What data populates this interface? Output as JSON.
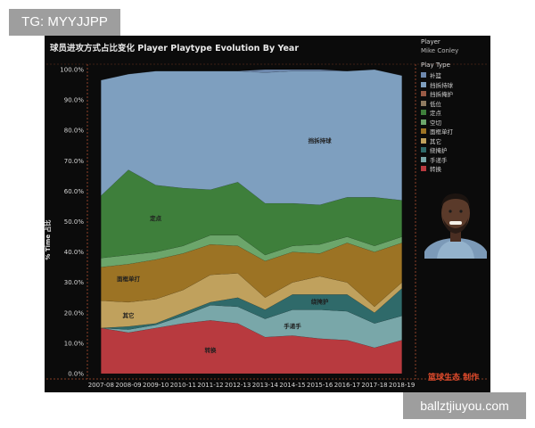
{
  "watermarks": {
    "top_left": "TG: MYYJJPP",
    "bottom_right": "ballztjiuyou.com"
  },
  "colors": {
    "panel_bg": "#0b0b0b",
    "series": {
      "补篮": "#6d88ad",
      "挡拆持球": "#7e9fbf",
      "挡拆掩护": "#9a5a45",
      "低位": "#8f7a60",
      "定点": "#3e7f3b",
      "空切": "#6ca66b",
      "面框单打": "#9c7324",
      "其它": "#c0a15d",
      "绕掩护": "#2f6a6a",
      "手递手": "#79a7a9",
      "转换": "#b83a3f"
    },
    "brand": "#e14b2c",
    "guide_lines": "#b05030"
  },
  "sidebar": {
    "player_header": "Player",
    "player_name": "Mike Conley",
    "playtype_header": "Play Type",
    "legend": [
      "补篮",
      "挡拆持球",
      "挡拆掩护",
      "低位",
      "定点",
      "空切",
      "面框单打",
      "其它",
      "绕掩护",
      "手递手",
      "转换"
    ]
  },
  "avatar_icon": "player-portrait",
  "brand_text": "篮球生态  制作",
  "chart_data": {
    "type": "area",
    "stacked": true,
    "title": "球员进攻方式占比变化 Player Playtype Evolution By Year",
    "ylabel": "% Time 占比",
    "xlabel": "",
    "ylim": [
      0,
      100
    ],
    "y_ticks": [
      "0.0%",
      "10.0%",
      "20.0%",
      "30.0%",
      "40.0%",
      "50.0%",
      "60.0%",
      "70.0%",
      "80.0%",
      "90.0%",
      "100.0%"
    ],
    "categories": [
      "2007-08",
      "2008-09",
      "2009-10",
      "2010-11",
      "2011-12",
      "2012-13",
      "2013-14",
      "2014-15",
      "2015-16",
      "2016-17",
      "2017-18",
      "2018-19"
    ],
    "series": [
      {
        "name": "转换",
        "values": [
          15,
          13.5,
          15,
          16.5,
          17.5,
          16.5,
          12,
          12.5,
          11.5,
          11,
          8.5,
          11
        ]
      },
      {
        "name": "手递手",
        "values": [
          0,
          1,
          1,
          2.5,
          5,
          5.5,
          6,
          8.5,
          9.5,
          9.5,
          8,
          8
        ]
      },
      {
        "name": "绕掩护",
        "values": [
          0,
          1,
          0.5,
          1,
          1,
          3,
          3,
          5,
          5,
          5.5,
          3.5,
          9
        ]
      },
      {
        "name": "其它",
        "values": [
          9,
          8,
          8,
          7.5,
          9,
          8,
          4,
          4,
          6,
          4,
          2,
          2
        ]
      },
      {
        "name": "面框单打",
        "values": [
          11,
          12.5,
          13,
          12,
          10,
          9,
          12,
          10,
          7.5,
          13,
          18,
          13
        ]
      },
      {
        "name": "空切",
        "values": [
          3,
          3,
          2.5,
          2.5,
          3,
          3.5,
          2,
          2,
          3,
          2,
          2,
          2
        ]
      },
      {
        "name": "定点",
        "values": [
          20.5,
          28,
          22,
          19,
          15,
          17.5,
          17,
          14,
          13,
          13,
          16,
          12
        ]
      },
      {
        "name": "低位",
        "values": [
          0,
          0,
          0,
          0,
          0,
          0,
          0,
          0,
          0,
          0,
          0,
          0
        ]
      },
      {
        "name": "挡拆掩护",
        "values": [
          0,
          0,
          0,
          0,
          0,
          0,
          0,
          0,
          0,
          0,
          0,
          0
        ]
      },
      {
        "name": "挡拆持球",
        "values": [
          38,
          31.5,
          37.5,
          38.5,
          39,
          36.5,
          43,
          43.5,
          44,
          41.5,
          42,
          41
        ]
      },
      {
        "name": "补篮",
        "values": [
          0,
          0,
          0,
          0,
          0,
          0,
          1,
          0.5,
          0.5,
          0,
          0,
          0
        ]
      }
    ],
    "area_labels": [
      {
        "series": "挡拆持球",
        "text": "挡拆持球",
        "category": "2015-16",
        "y": 76
      },
      {
        "series": "定点",
        "text": "定点",
        "category": "2009-10",
        "y": 50.5
      },
      {
        "series": "面框单打",
        "text": "面框单打",
        "category": "2008-09",
        "y": 30.5
      },
      {
        "series": "其它",
        "text": "其它",
        "category": "2008-09",
        "y": 18.5
      },
      {
        "series": "绕掩护",
        "text": "绕掩护",
        "category": "2015-16",
        "y": 23
      },
      {
        "series": "手递手",
        "text": "手递手",
        "category": "2014-15",
        "y": 15
      },
      {
        "series": "转换",
        "text": "转换",
        "category": "2011-12",
        "y": 7
      }
    ],
    "grid": false,
    "legend_position": "right"
  }
}
